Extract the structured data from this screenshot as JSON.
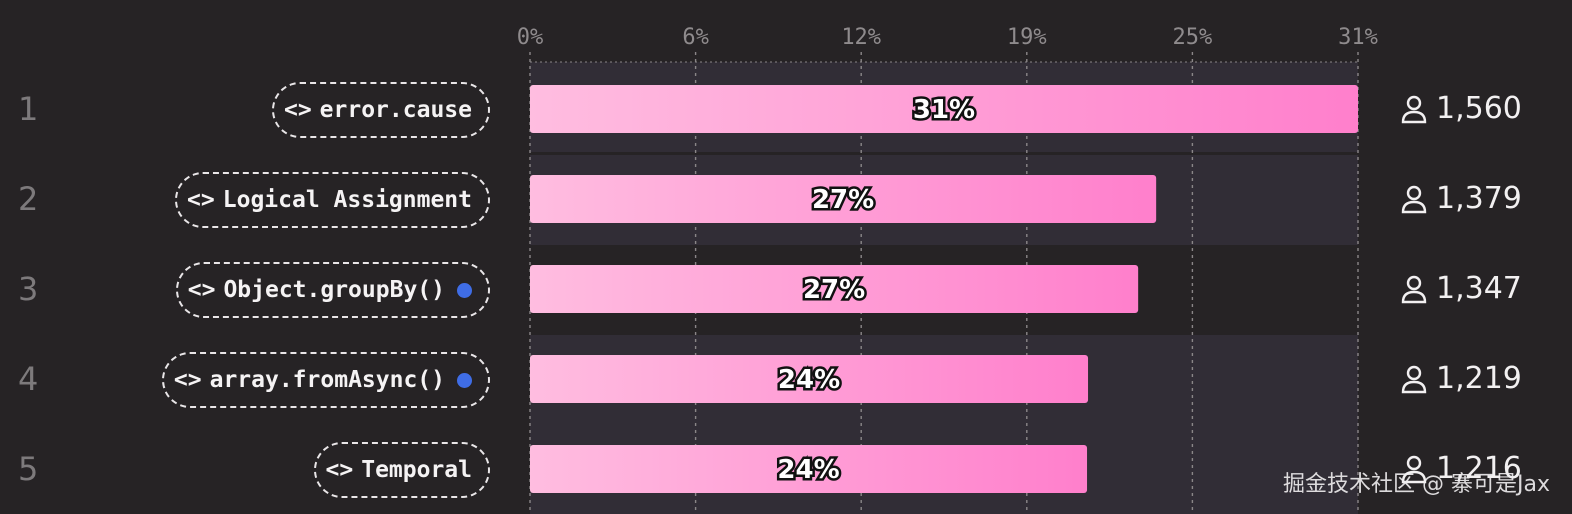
{
  "chart_data": {
    "type": "bar",
    "orientation": "horizontal",
    "categories": [
      "error.cause",
      "Logical Assignment",
      "Object.groupBy()",
      "array.fromAsync()",
      "Temporal"
    ],
    "ranks": [
      "1",
      "2",
      "3",
      "4",
      "5"
    ],
    "values": [
      31,
      27,
      27,
      24,
      24
    ],
    "value_labels": [
      "31%",
      "27%",
      "27%",
      "24%",
      "24%"
    ],
    "counts": [
      "1,560",
      "1,379",
      "1,347",
      "1,219",
      "1,216"
    ],
    "new_marker": [
      false,
      false,
      true,
      true,
      false
    ],
    "x_ticks": [
      "0%",
      "6%",
      "12%",
      "19%",
      "25%",
      "31%"
    ],
    "xlim": [
      0,
      31
    ],
    "grid": true,
    "title": "",
    "xlabel": "",
    "ylabel": ""
  },
  "colors": {
    "background": "#262325",
    "row_band": "#312d36",
    "bar_start": "#ffbde0",
    "bar_end": "#ff7fcc",
    "grid": "#8a8688",
    "new_dot": "#3f6de6"
  },
  "icons": {
    "code": "code-brackets-icon",
    "user": "user-icon"
  },
  "watermark": "掘金技术社区 @ 寨可是Jax"
}
